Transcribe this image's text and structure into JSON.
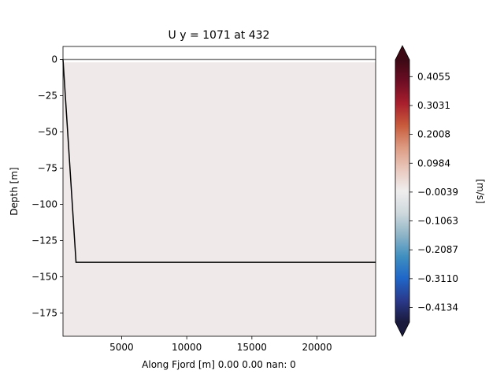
{
  "chart_data": {
    "type": "heatmap",
    "title": "U y = 1071 at 432",
    "xlabel": "Along Fjord [m] 0.00 0.00 nan: 0",
    "ylabel": "Depth [m]",
    "xlim": [
      500,
      24500
    ],
    "ylim": [
      -191,
      9
    ],
    "x_ticks": [
      5000,
      10000,
      15000,
      20000
    ],
    "y_ticks": [
      0,
      -25,
      -50,
      -75,
      -100,
      -125,
      -150,
      -175
    ],
    "field": {
      "value": -0.0039,
      "color": "#efe9e9",
      "x_range": [
        500,
        24500
      ],
      "depth_range": [
        -2,
        -191
      ]
    },
    "zero_line": {
      "y": 0,
      "color": "#888888"
    },
    "bottom_profile": {
      "x": [
        500,
        1500,
        24500
      ],
      "y": [
        0,
        -140,
        -140
      ],
      "color": "#000000"
    },
    "colorbar": {
      "label": "[m/s]",
      "vmin": -0.465,
      "vmax": 0.465,
      "ticks": [
        0.4055,
        0.3031,
        0.2008,
        0.0984,
        -0.0039,
        -0.1063,
        -0.2087,
        -0.311,
        -0.4134
      ],
      "tick_labels": [
        "0.4055",
        "0.3031",
        "0.2008",
        "0.0984",
        "−0.0039",
        "−0.1063",
        "−0.2087",
        "−0.3110",
        "−0.4134"
      ],
      "colormap": [
        "#1a1a3c",
        "#2a3a8c",
        "#1f66c8",
        "#3f8fc0",
        "#8fb5c7",
        "#cfd9dd",
        "#efeeee",
        "#e9c8bd",
        "#dd9a81",
        "#c85b3b",
        "#a91f2d",
        "#6e0d24",
        "#3c0914"
      ],
      "extend": "both"
    }
  }
}
